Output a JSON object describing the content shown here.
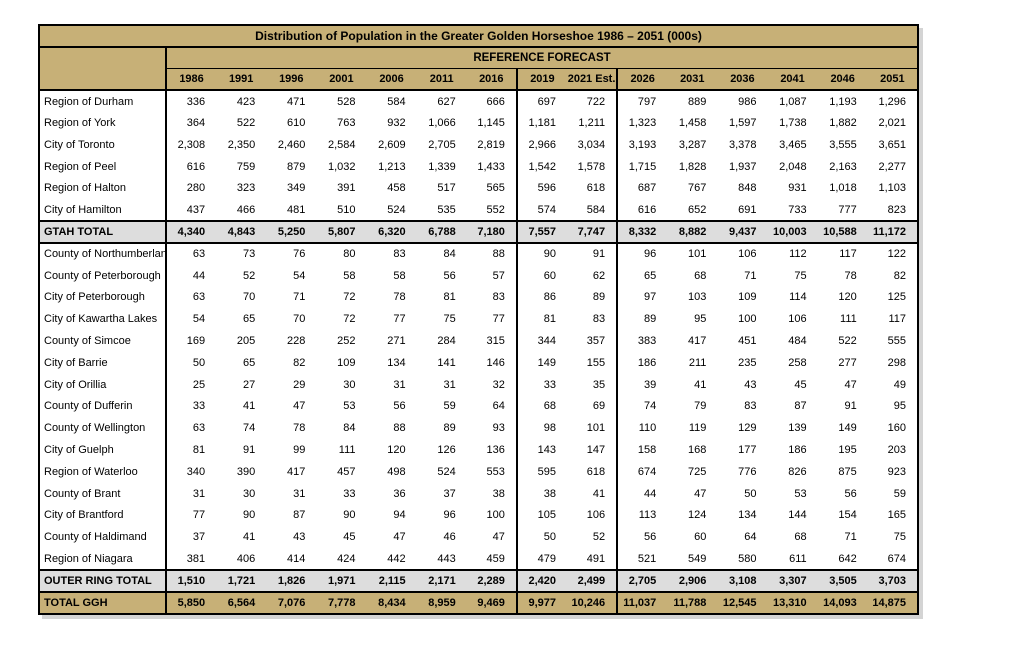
{
  "colors": {
    "tan": "#C7B077",
    "gray": "#DDDDDD",
    "border": "#000000"
  },
  "chart_data": {
    "type": "table",
    "title": "Distribution of Population in the Greater Golden Horseshoe 1986 – 2051 (000s)",
    "group_header": "REFERENCE FORECAST",
    "columns": [
      "1986",
      "1991",
      "1996",
      "2001",
      "2006",
      "2011",
      "2016",
      "2019",
      "2021 Est.",
      "2026",
      "2031",
      "2036",
      "2041",
      "2046",
      "2051"
    ],
    "column_group_separators_before": [
      "2019",
      "2026"
    ],
    "units": "thousands of people",
    "rows": [
      {
        "label": "Region of Durham",
        "kind": "region",
        "values": [
          "336",
          "423",
          "471",
          "528",
          "584",
          "627",
          "666",
          "697",
          "722",
          "797",
          "889",
          "986",
          "1,087",
          "1,193",
          "1,296"
        ]
      },
      {
        "label": "Region of York",
        "kind": "region",
        "values": [
          "364",
          "522",
          "610",
          "763",
          "932",
          "1,066",
          "1,145",
          "1,181",
          "1,211",
          "1,323",
          "1,458",
          "1,597",
          "1,738",
          "1,882",
          "2,021"
        ]
      },
      {
        "label": "City of Toronto",
        "kind": "region",
        "values": [
          "2,308",
          "2,350",
          "2,460",
          "2,584",
          "2,609",
          "2,705",
          "2,819",
          "2,966",
          "3,034",
          "3,193",
          "3,287",
          "3,378",
          "3,465",
          "3,555",
          "3,651"
        ]
      },
      {
        "label": "Region of Peel",
        "kind": "region",
        "values": [
          "616",
          "759",
          "879",
          "1,032",
          "1,213",
          "1,339",
          "1,433",
          "1,542",
          "1,578",
          "1,715",
          "1,828",
          "1,937",
          "2,048",
          "2,163",
          "2,277"
        ]
      },
      {
        "label": "Region of Halton",
        "kind": "region",
        "values": [
          "280",
          "323",
          "349",
          "391",
          "458",
          "517",
          "565",
          "596",
          "618",
          "687",
          "767",
          "848",
          "931",
          "1,018",
          "1,103"
        ]
      },
      {
        "label": "City of Hamilton",
        "kind": "region",
        "values": [
          "437",
          "466",
          "481",
          "510",
          "524",
          "535",
          "552",
          "574",
          "584",
          "616",
          "652",
          "691",
          "733",
          "777",
          "823"
        ]
      },
      {
        "label": "GTAH TOTAL",
        "kind": "subtotal",
        "values": [
          "4,340",
          "4,843",
          "5,250",
          "5,807",
          "6,320",
          "6,788",
          "7,180",
          "7,557",
          "7,747",
          "8,332",
          "8,882",
          "9,437",
          "10,003",
          "10,588",
          "11,172"
        ]
      },
      {
        "label": "County of Northumberland",
        "kind": "region",
        "values": [
          "63",
          "73",
          "76",
          "80",
          "83",
          "84",
          "88",
          "90",
          "91",
          "96",
          "101",
          "106",
          "112",
          "117",
          "122"
        ]
      },
      {
        "label": "County of Peterborough",
        "kind": "region",
        "values": [
          "44",
          "52",
          "54",
          "58",
          "58",
          "56",
          "57",
          "60",
          "62",
          "65",
          "68",
          "71",
          "75",
          "78",
          "82"
        ]
      },
      {
        "label": "City of Peterborough",
        "kind": "region",
        "values": [
          "63",
          "70",
          "71",
          "72",
          "78",
          "81",
          "83",
          "86",
          "89",
          "97",
          "103",
          "109",
          "114",
          "120",
          "125"
        ]
      },
      {
        "label": "City of Kawartha Lakes",
        "kind": "region",
        "values": [
          "54",
          "65",
          "70",
          "72",
          "77",
          "75",
          "77",
          "81",
          "83",
          "89",
          "95",
          "100",
          "106",
          "111",
          "117"
        ]
      },
      {
        "label": "County of Simcoe",
        "kind": "region",
        "values": [
          "169",
          "205",
          "228",
          "252",
          "271",
          "284",
          "315",
          "344",
          "357",
          "383",
          "417",
          "451",
          "484",
          "522",
          "555"
        ]
      },
      {
        "label": "City of Barrie",
        "kind": "region",
        "values": [
          "50",
          "65",
          "82",
          "109",
          "134",
          "141",
          "146",
          "149",
          "155",
          "186",
          "211",
          "235",
          "258",
          "277",
          "298"
        ]
      },
      {
        "label": "City of Orillia",
        "kind": "region",
        "values": [
          "25",
          "27",
          "29",
          "30",
          "31",
          "31",
          "32",
          "33",
          "35",
          "39",
          "41",
          "43",
          "45",
          "47",
          "49"
        ]
      },
      {
        "label": "County of Dufferin",
        "kind": "region",
        "values": [
          "33",
          "41",
          "47",
          "53",
          "56",
          "59",
          "64",
          "68",
          "69",
          "74",
          "79",
          "83",
          "87",
          "91",
          "95"
        ]
      },
      {
        "label": "County of Wellington",
        "kind": "region",
        "values": [
          "63",
          "74",
          "78",
          "84",
          "88",
          "89",
          "93",
          "98",
          "101",
          "110",
          "119",
          "129",
          "139",
          "149",
          "160"
        ]
      },
      {
        "label": "City of Guelph",
        "kind": "region",
        "values": [
          "81",
          "91",
          "99",
          "111",
          "120",
          "126",
          "136",
          "143",
          "147",
          "158",
          "168",
          "177",
          "186",
          "195",
          "203"
        ]
      },
      {
        "label": "Region of Waterloo",
        "kind": "region",
        "values": [
          "340",
          "390",
          "417",
          "457",
          "498",
          "524",
          "553",
          "595",
          "618",
          "674",
          "725",
          "776",
          "826",
          "875",
          "923"
        ]
      },
      {
        "label": "County of Brant",
        "kind": "region",
        "values": [
          "31",
          "30",
          "31",
          "33",
          "36",
          "37",
          "38",
          "38",
          "41",
          "44",
          "47",
          "50",
          "53",
          "56",
          "59"
        ]
      },
      {
        "label": "City of Brantford",
        "kind": "region",
        "values": [
          "77",
          "90",
          "87",
          "90",
          "94",
          "96",
          "100",
          "105",
          "106",
          "113",
          "124",
          "134",
          "144",
          "154",
          "165"
        ]
      },
      {
        "label": "County of Haldimand",
        "kind": "region",
        "values": [
          "37",
          "41",
          "43",
          "45",
          "47",
          "46",
          "47",
          "50",
          "52",
          "56",
          "60",
          "64",
          "68",
          "71",
          "75"
        ]
      },
      {
        "label": "Region of Niagara",
        "kind": "region",
        "values": [
          "381",
          "406",
          "414",
          "424",
          "442",
          "443",
          "459",
          "479",
          "491",
          "521",
          "549",
          "580",
          "611",
          "642",
          "674"
        ]
      },
      {
        "label": "OUTER RING TOTAL",
        "kind": "subtotal",
        "values": [
          "1,510",
          "1,721",
          "1,826",
          "1,971",
          "2,115",
          "2,171",
          "2,289",
          "2,420",
          "2,499",
          "2,705",
          "2,906",
          "3,108",
          "3,307",
          "3,505",
          "3,703"
        ]
      },
      {
        "label": "TOTAL GGH",
        "kind": "grand_total",
        "values": [
          "5,850",
          "6,564",
          "7,076",
          "7,778",
          "8,434",
          "8,959",
          "9,469",
          "9,977",
          "10,246",
          "11,037",
          "11,788",
          "12,545",
          "13,310",
          "14,093",
          "14,875"
        ]
      }
    ]
  }
}
